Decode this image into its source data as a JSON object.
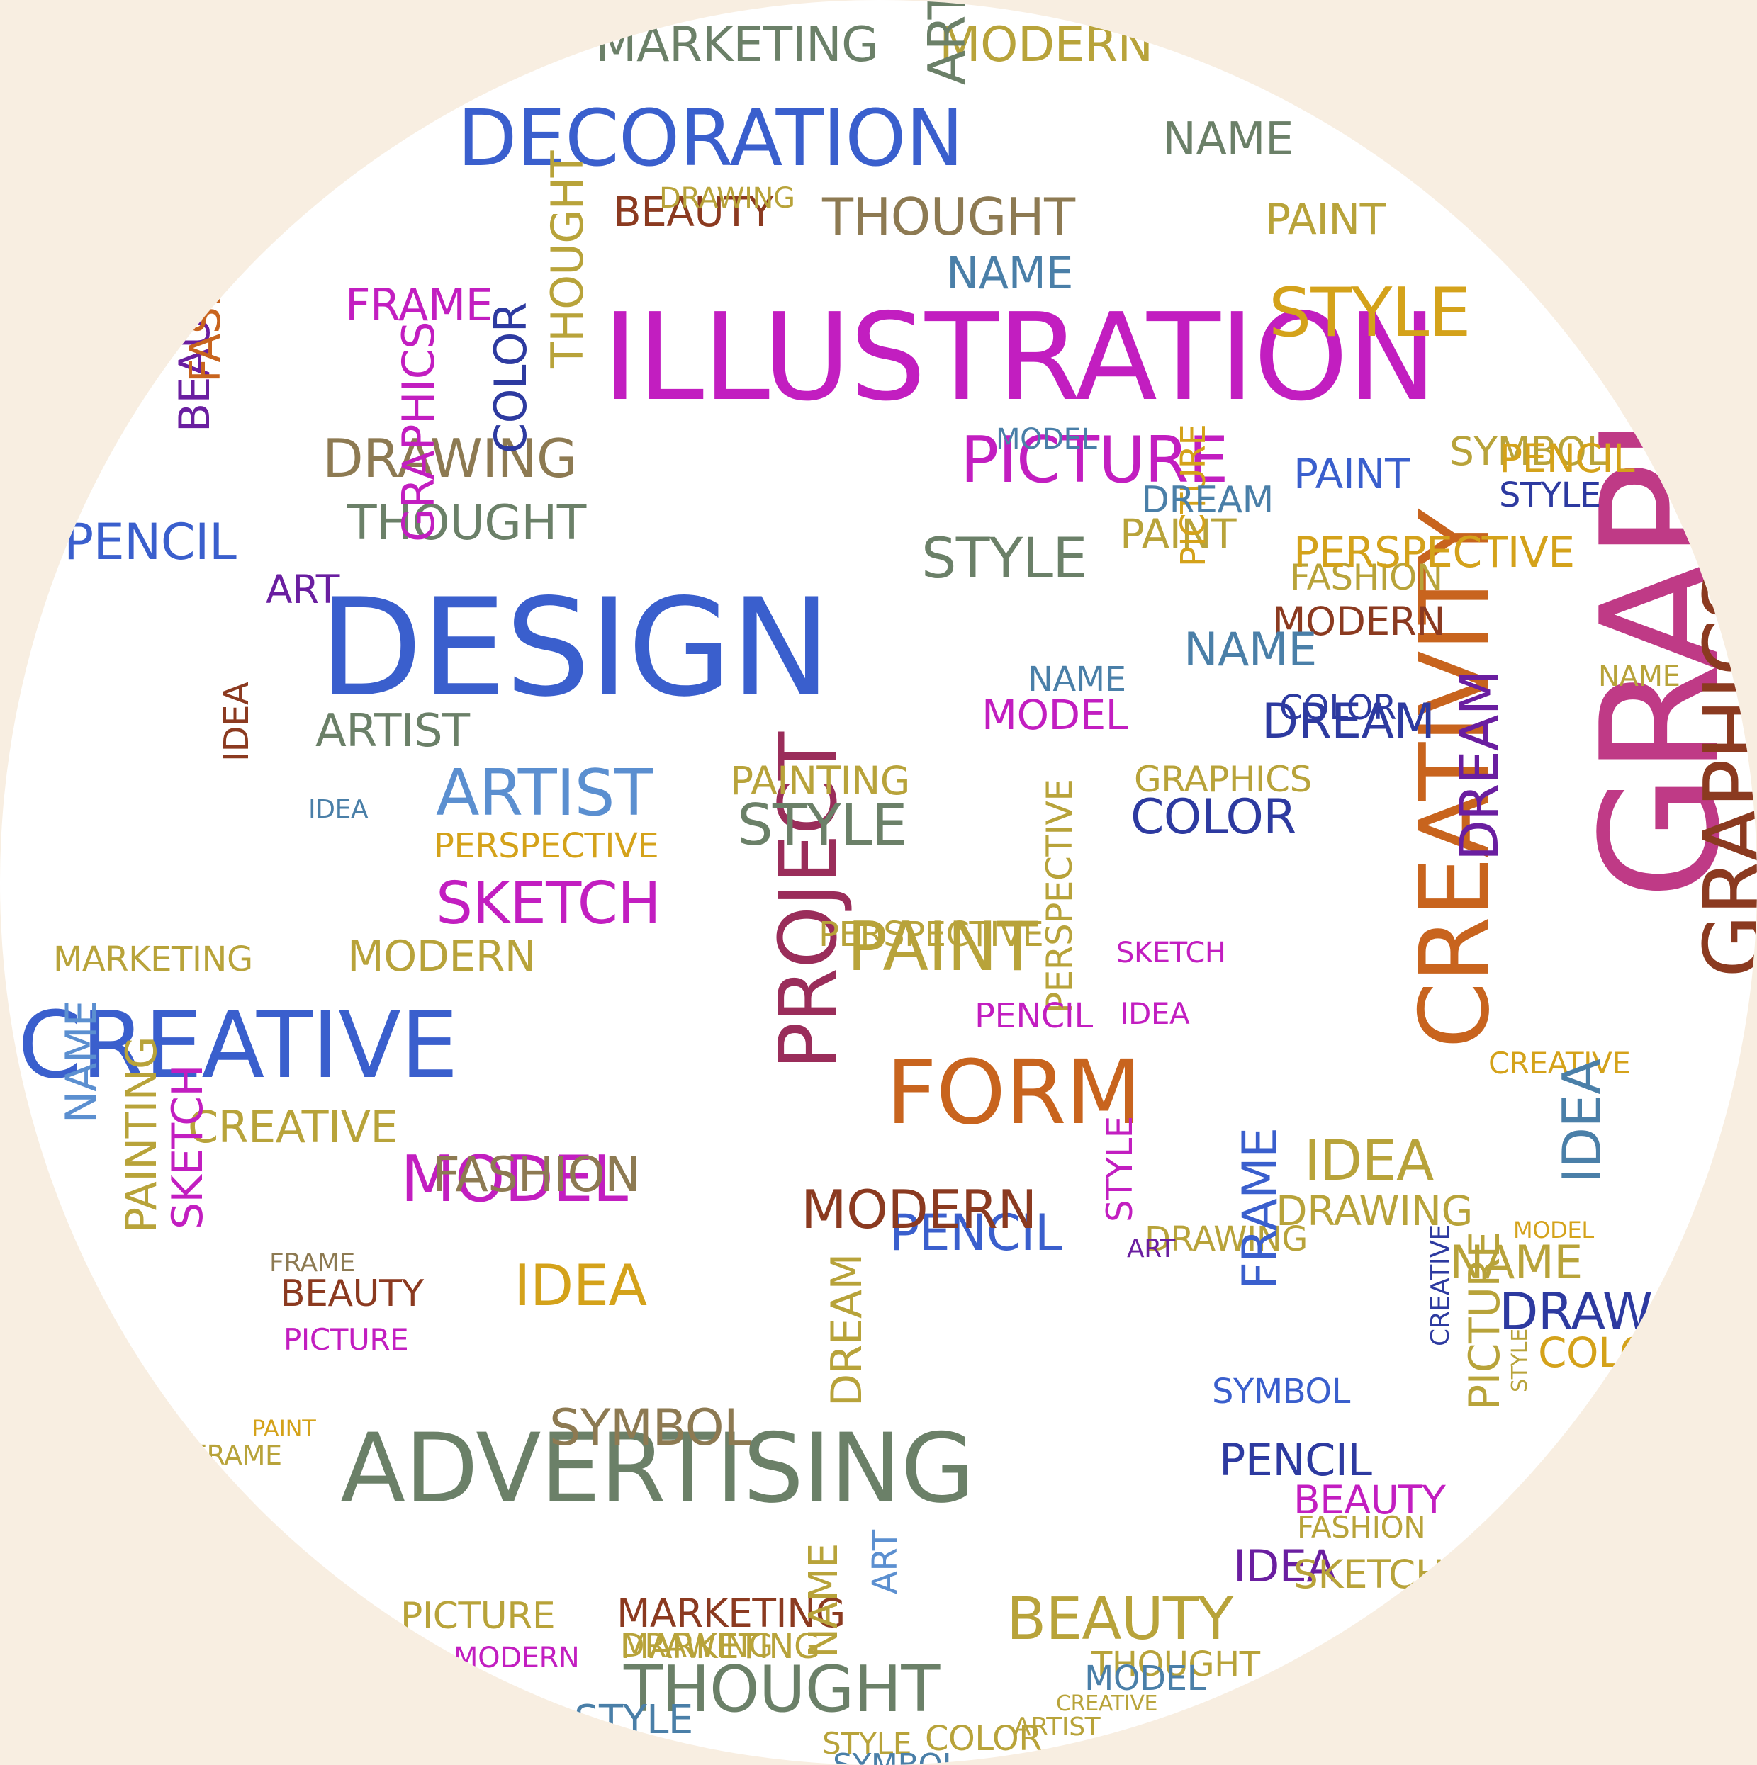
{
  "palette": {
    "background": "#f8eee1",
    "disc": "#ffffff",
    "colors": [
      "#3a5fcd",
      "#c21ec0",
      "#2d3aa0",
      "#8d7a52",
      "#c8641e",
      "#bf3a86",
      "#8b3a20",
      "#6b8068",
      "#a67f1a",
      "#4a7fa8",
      "#b8a33a",
      "#6a1ea0",
      "#9a2d5a",
      "#5b8fd0",
      "#d4a21a"
    ]
  },
  "words": [
    {
      "text": "ILLUSTRATION",
      "icon": "",
      "rot": 0
    },
    {
      "text": "DESIGN",
      "rot": 0
    },
    {
      "text": "GRAPHIC",
      "rot": -90
    },
    {
      "text": "CREATIVITY",
      "rot": -90
    },
    {
      "text": "PROJECT",
      "rot": -90
    },
    {
      "text": "ADVERTISING",
      "rot": 0
    },
    {
      "text": "CREATIVE",
      "rot": 0
    },
    {
      "text": "DECORATION",
      "rot": 0
    },
    {
      "text": "FORM",
      "rot": 0
    },
    {
      "text": "MODERN",
      "rot": 0
    },
    {
      "text": "MARKETING",
      "rot": 0
    },
    {
      "text": "ART",
      "rot": -90
    },
    {
      "text": "PENCIL",
      "rot": 0
    },
    {
      "text": "MODEL",
      "rot": 0
    },
    {
      "text": "COLOR",
      "rot": 0
    },
    {
      "text": "FRAME",
      "rot": 0
    },
    {
      "text": "PAINT",
      "rot": 0
    },
    {
      "text": "IDEA",
      "rot": 0
    },
    {
      "text": "MODEL",
      "rot": 0
    },
    {
      "text": "STYLE",
      "rot": 0
    },
    {
      "text": "STYLE",
      "rot": 0
    },
    {
      "text": "THOUGHT",
      "rot": 0
    },
    {
      "text": "PERSPECTIVE",
      "rot": 0
    },
    {
      "text": "PICTURE",
      "rot": 0
    },
    {
      "text": "DRAWING",
      "rot": 0
    },
    {
      "text": "BEAUTY",
      "rot": -90
    },
    {
      "text": "ARTIST",
      "rot": 0
    },
    {
      "text": "SKETCH",
      "rot": 0
    },
    {
      "text": "PAINTING",
      "rot": 0
    },
    {
      "text": "FASHION",
      "rot": 0
    },
    {
      "text": "SYMBOL",
      "rot": 0
    },
    {
      "text": "DREAM",
      "rot": 0
    },
    {
      "text": "NAME",
      "rot": 0
    },
    {
      "text": "GRAPHICS",
      "rot": 0
    },
    {
      "text": "CREATIVE",
      "rot": 0
    },
    {
      "text": "PENCIL",
      "rot": 0
    },
    {
      "text": "MODERN",
      "rot": 0
    },
    {
      "text": "PICTURE",
      "rot": 0
    },
    {
      "text": "BEAUTY",
      "rot": 0
    },
    {
      "text": "IDEA",
      "rot": 0
    },
    {
      "text": "DREAM",
      "rot": -90
    },
    {
      "text": "SKETCH",
      "rot": -90
    },
    {
      "text": "PAINTING",
      "rot": -90
    },
    {
      "text": "NAME",
      "rot": -90
    },
    {
      "text": "MARKETING",
      "rot": 0
    },
    {
      "text": "PERSPECTIVE",
      "rot": 0
    },
    {
      "text": "BEAUTY",
      "rot": 0
    },
    {
      "text": "SYMBOL",
      "rot": 0
    },
    {
      "text": "COLOR",
      "rot": -90
    },
    {
      "text": "THOUGHT",
      "rot": -90
    },
    {
      "text": "FASHION",
      "rot": -90
    },
    {
      "text": "PERSPECTIVE",
      "rot": -90
    },
    {
      "text": "PAINT",
      "rot": 0
    },
    {
      "text": "DRAWING",
      "rot": 0
    },
    {
      "text": "MODERN",
      "rot": 0
    },
    {
      "text": "NAME",
      "rot": 0
    },
    {
      "text": "COLOR",
      "rot": 0
    },
    {
      "text": "STYLE",
      "rot": 0
    },
    {
      "text": "ART",
      "rot": 0
    },
    {
      "text": "PICTURE",
      "rot": -90
    },
    {
      "text": "IDEA",
      "rot": -90
    },
    {
      "text": "MODERN",
      "rot": 0
    },
    {
      "text": "THOUGHT",
      "rot": 0
    },
    {
      "text": "STYLE",
      "rot": 0
    },
    {
      "text": "PENCIL",
      "rot": 0
    },
    {
      "text": "SKETCH",
      "rot": 0
    },
    {
      "text": "FRAME",
      "rot": 0
    },
    {
      "text": "DRAWING",
      "rot": 0
    },
    {
      "text": "PAINT",
      "rot": 0
    },
    {
      "text": "FASHION",
      "rot": 0
    },
    {
      "text": "SYMBOL",
      "rot": -90
    },
    {
      "text": "GRAPHICS",
      "rot": -90
    },
    {
      "text": "MODEL",
      "rot": 0
    },
    {
      "text": "NAME",
      "rot": 0
    },
    {
      "text": "STYLE",
      "rot": -90
    },
    {
      "text": "BEAUTY",
      "rot": 0
    },
    {
      "text": "MARKETING",
      "rot": 0
    },
    {
      "text": "THOUGHT",
      "rot": 0
    },
    {
      "text": "PERSPECTIVE",
      "rot": 0
    },
    {
      "text": "IDEA",
      "rot": 0
    },
    {
      "text": "NAME",
      "rot": 0
    },
    {
      "text": "ARTIST",
      "rot": 0
    },
    {
      "text": "STYLE",
      "rot": -90
    },
    {
      "text": "MODEL",
      "rot": 0
    },
    {
      "text": "PAINT",
      "rot": 0
    },
    {
      "text": "PENCIL",
      "rot": 0
    },
    {
      "text": "SYMBOL",
      "rot": 0
    },
    {
      "text": "DREAM",
      "rot": 0
    },
    {
      "text": "FRAME",
      "rot": -90
    },
    {
      "text": "COLOR",
      "rot": 0
    },
    {
      "text": "CREATIVE",
      "rot": 0
    },
    {
      "text": "ART",
      "rot": 0
    },
    {
      "text": "IDEA",
      "rot": -90
    },
    {
      "text": "NAME",
      "rot": 0
    },
    {
      "text": "DRAWING",
      "rot": 0
    },
    {
      "text": "COLOR",
      "rot": 0
    },
    {
      "text": "IDEA",
      "rot": 0
    },
    {
      "text": "PICTURE",
      "rot": -90
    },
    {
      "text": "CREATIVE",
      "rot": -90
    },
    {
      "text": "STYLE",
      "rot": 0
    },
    {
      "text": "PENCIL",
      "rot": 0
    },
    {
      "text": "DREAM",
      "rot": -90
    },
    {
      "text": "BEAUTY",
      "rot": 0
    },
    {
      "text": "SKETCH",
      "rot": 0
    },
    {
      "text": "FASHION",
      "rot": 0
    },
    {
      "text": "DRAWING",
      "rot": 0
    },
    {
      "text": "PERSPECTIVE",
      "rot": 0
    },
    {
      "text": "MARKETING",
      "rot": 0
    },
    {
      "text": "MODERN",
      "rot": 0
    },
    {
      "text": "PICTURE",
      "rot": 0
    },
    {
      "text": "DRAWING",
      "rot": 0
    },
    {
      "text": "THOUGHT",
      "rot": 0
    },
    {
      "text": "STYLE",
      "rot": 0
    },
    {
      "text": "NAME",
      "rot": -90
    },
    {
      "text": "ART",
      "rot": -90
    },
    {
      "text": "FRAME",
      "rot": 0
    },
    {
      "text": "PAINT",
      "rot": 0
    },
    {
      "text": "IDEA",
      "rot": 0
    },
    {
      "text": "MODEL",
      "rot": 0
    },
    {
      "text": "ARTIST",
      "rot": 0
    },
    {
      "text": "CREATIVE",
      "rot": 0
    },
    {
      "text": "SYMBOL",
      "rot": 0
    },
    {
      "text": "DREAM",
      "rot": 0
    },
    {
      "text": "NAME",
      "rot": 0
    },
    {
      "text": "GRAPHICS",
      "rot": -90
    },
    {
      "text": "BEAUTY",
      "rot": -90
    }
  ]
}
